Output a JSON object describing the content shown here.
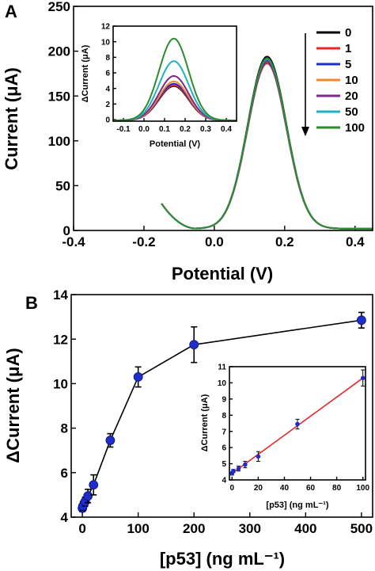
{
  "chart_data": [
    {
      "panel_label": "A",
      "type": "line",
      "xlabel": "Potential (V)",
      "ylabel": "Current (μA)",
      "xlim": [
        -0.4,
        0.45
      ],
      "ylim": [
        0,
        250
      ],
      "xticks": [
        "-0.4",
        "-0.2",
        "0.0",
        "0.2",
        "0.4"
      ],
      "yticks": [
        "0",
        "50",
        "100",
        "150",
        "200",
        "250"
      ],
      "legend_position": "top-right",
      "series": [
        {
          "name": "0",
          "color": "#000000",
          "peak_x": 0.15,
          "peak_y": 194
        },
        {
          "name": "1",
          "color": "#e8262a",
          "peak_x": 0.15,
          "peak_y": 189
        },
        {
          "name": "5",
          "color": "#1e2ecc",
          "peak_x": 0.15,
          "peak_y": 190
        },
        {
          "name": "10",
          "color": "#f5892a",
          "peak_x": 0.15,
          "peak_y": 186
        },
        {
          "name": "20",
          "color": "#7b2a8e",
          "peak_x": 0.15,
          "peak_y": 187
        },
        {
          "name": "50",
          "color": "#1fb3c0",
          "peak_x": 0.15,
          "peak_y": 191
        },
        {
          "name": "100",
          "color": "#2e8a2e",
          "peak_x": 0.15,
          "peak_y": 192
        }
      ],
      "curve_shape": {
        "start_x": -0.15,
        "start_y": 28,
        "min_x": -0.05,
        "min_y": 2
      },
      "inset": {
        "type": "line",
        "xlabel": "Potential (V)",
        "ylabel": "ΔCurrent (μA)",
        "xlim": [
          -0.15,
          0.45
        ],
        "ylim": [
          -0.2,
          12
        ],
        "xticks": [
          "-0.1",
          "0.0",
          "0.1",
          "0.2",
          "0.3",
          "0.4"
        ],
        "yticks": [
          "0",
          "2",
          "4",
          "6",
          "8",
          "10",
          "12"
        ],
        "peak_x": 0.145,
        "peaks": [
          {
            "name": "0",
            "color": "#000000",
            "value": 4.4
          },
          {
            "name": "1",
            "color": "#e8262a",
            "value": 4.5
          },
          {
            "name": "5",
            "color": "#1e2ecc",
            "value": 4.7
          },
          {
            "name": "10",
            "color": "#f5892a",
            "value": 5.0
          },
          {
            "name": "20",
            "color": "#7b2a8e",
            "value": 5.7
          },
          {
            "name": "50",
            "color": "#1fb3c0",
            "value": 7.6
          },
          {
            "name": "100",
            "color": "#2e8a2e",
            "value": 10.5
          }
        ]
      }
    },
    {
      "panel_label": "B",
      "type": "scatter",
      "xlabel": "[p53] (ng mL⁻¹)",
      "ylabel": "ΔCurrent (μA)",
      "xlim": [
        -20,
        520
      ],
      "ylim": [
        4,
        14
      ],
      "xticks": [
        "0",
        "100",
        "200",
        "300",
        "400",
        "500"
      ],
      "yticks": [
        "4",
        "6",
        "8",
        "10",
        "12",
        "14"
      ],
      "x": [
        0,
        1,
        5,
        10,
        20,
        50,
        100,
        200,
        500
      ],
      "y": [
        4.4,
        4.5,
        4.7,
        4.95,
        5.45,
        7.45,
        10.3,
        11.75,
        12.85
      ],
      "yerr": [
        0.15,
        0.2,
        0.2,
        0.3,
        0.45,
        0.3,
        0.45,
        0.8,
        0.35
      ],
      "marker_color": "#1e2ecc",
      "inset": {
        "type": "scatter",
        "xlabel": "[p53] (ng mL⁻¹)",
        "ylabel": "ΔCurrent (μA)",
        "xlim": [
          -2,
          102
        ],
        "ylim": [
          4,
          11
        ],
        "xticks": [
          "0",
          "20",
          "40",
          "60",
          "80",
          "100"
        ],
        "yticks": [
          "4",
          "5",
          "6",
          "7",
          "8",
          "9",
          "10",
          "11"
        ],
        "x": [
          0,
          1,
          5,
          10,
          20,
          50,
          100
        ],
        "y": [
          4.4,
          4.55,
          4.7,
          4.95,
          5.45,
          7.45,
          10.3
        ],
        "yerr": [
          0.1,
          0.1,
          0.15,
          0.2,
          0.3,
          0.3,
          0.5
        ],
        "fit_color": "#e8262a",
        "fit_line": [
          [
            0,
            4.4
          ],
          [
            100,
            10.3
          ]
        ]
      }
    }
  ]
}
